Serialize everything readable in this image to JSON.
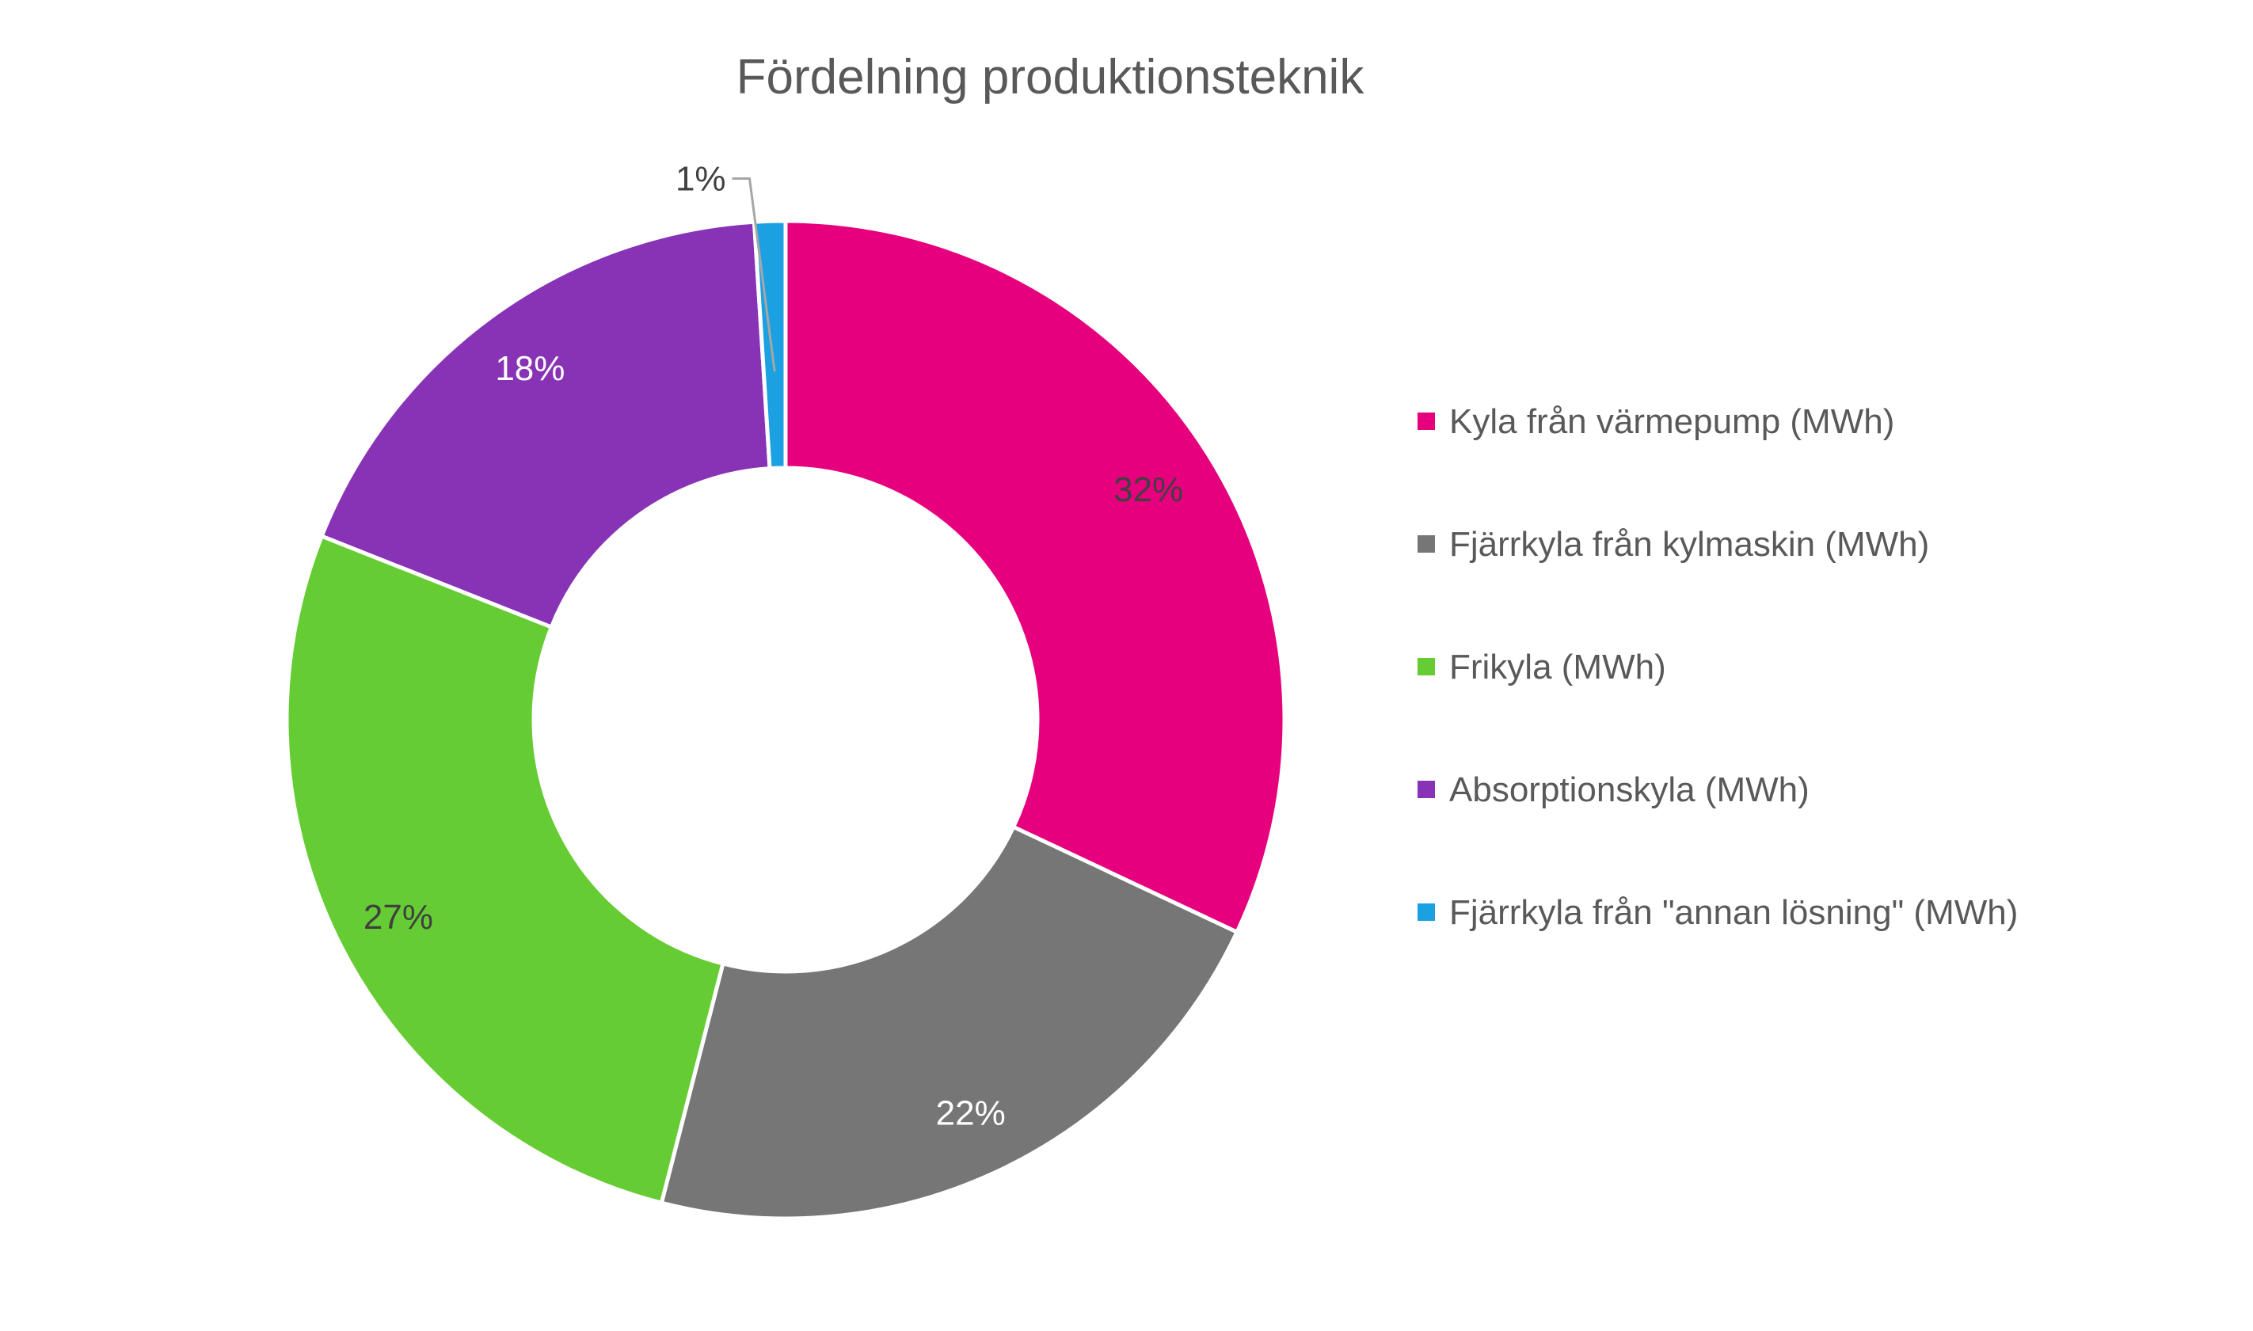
{
  "chart_data": {
    "type": "pie",
    "variant": "donut",
    "title": "Fördelning produktionsteknik",
    "legend_position": "right",
    "slices": [
      {
        "name": "Kyla från värmepump (MWh)",
        "value": 32,
        "label": "32%",
        "color": "#E6007E",
        "label_color": "#404040"
      },
      {
        "name": "Fjärrkyla från kylmaskin (MWh)",
        "value": 22,
        "label": "22%",
        "color": "#767676",
        "label_color": "#ffffff"
      },
      {
        "name": "Frikyla (MWh)",
        "value": 27,
        "label": "27%",
        "color": "#66CC33",
        "label_color": "#404040"
      },
      {
        "name": "Absorptionskyla (MWh)",
        "value": 18,
        "label": "18%",
        "color": "#8833B5",
        "label_color": "#ffffff"
      },
      {
        "name": "Fjärrkyla från \"annan lösning\" (MWh)",
        "value": 1,
        "label": "1%",
        "color": "#1BA1E2",
        "label_color": "#404040"
      }
    ]
  }
}
